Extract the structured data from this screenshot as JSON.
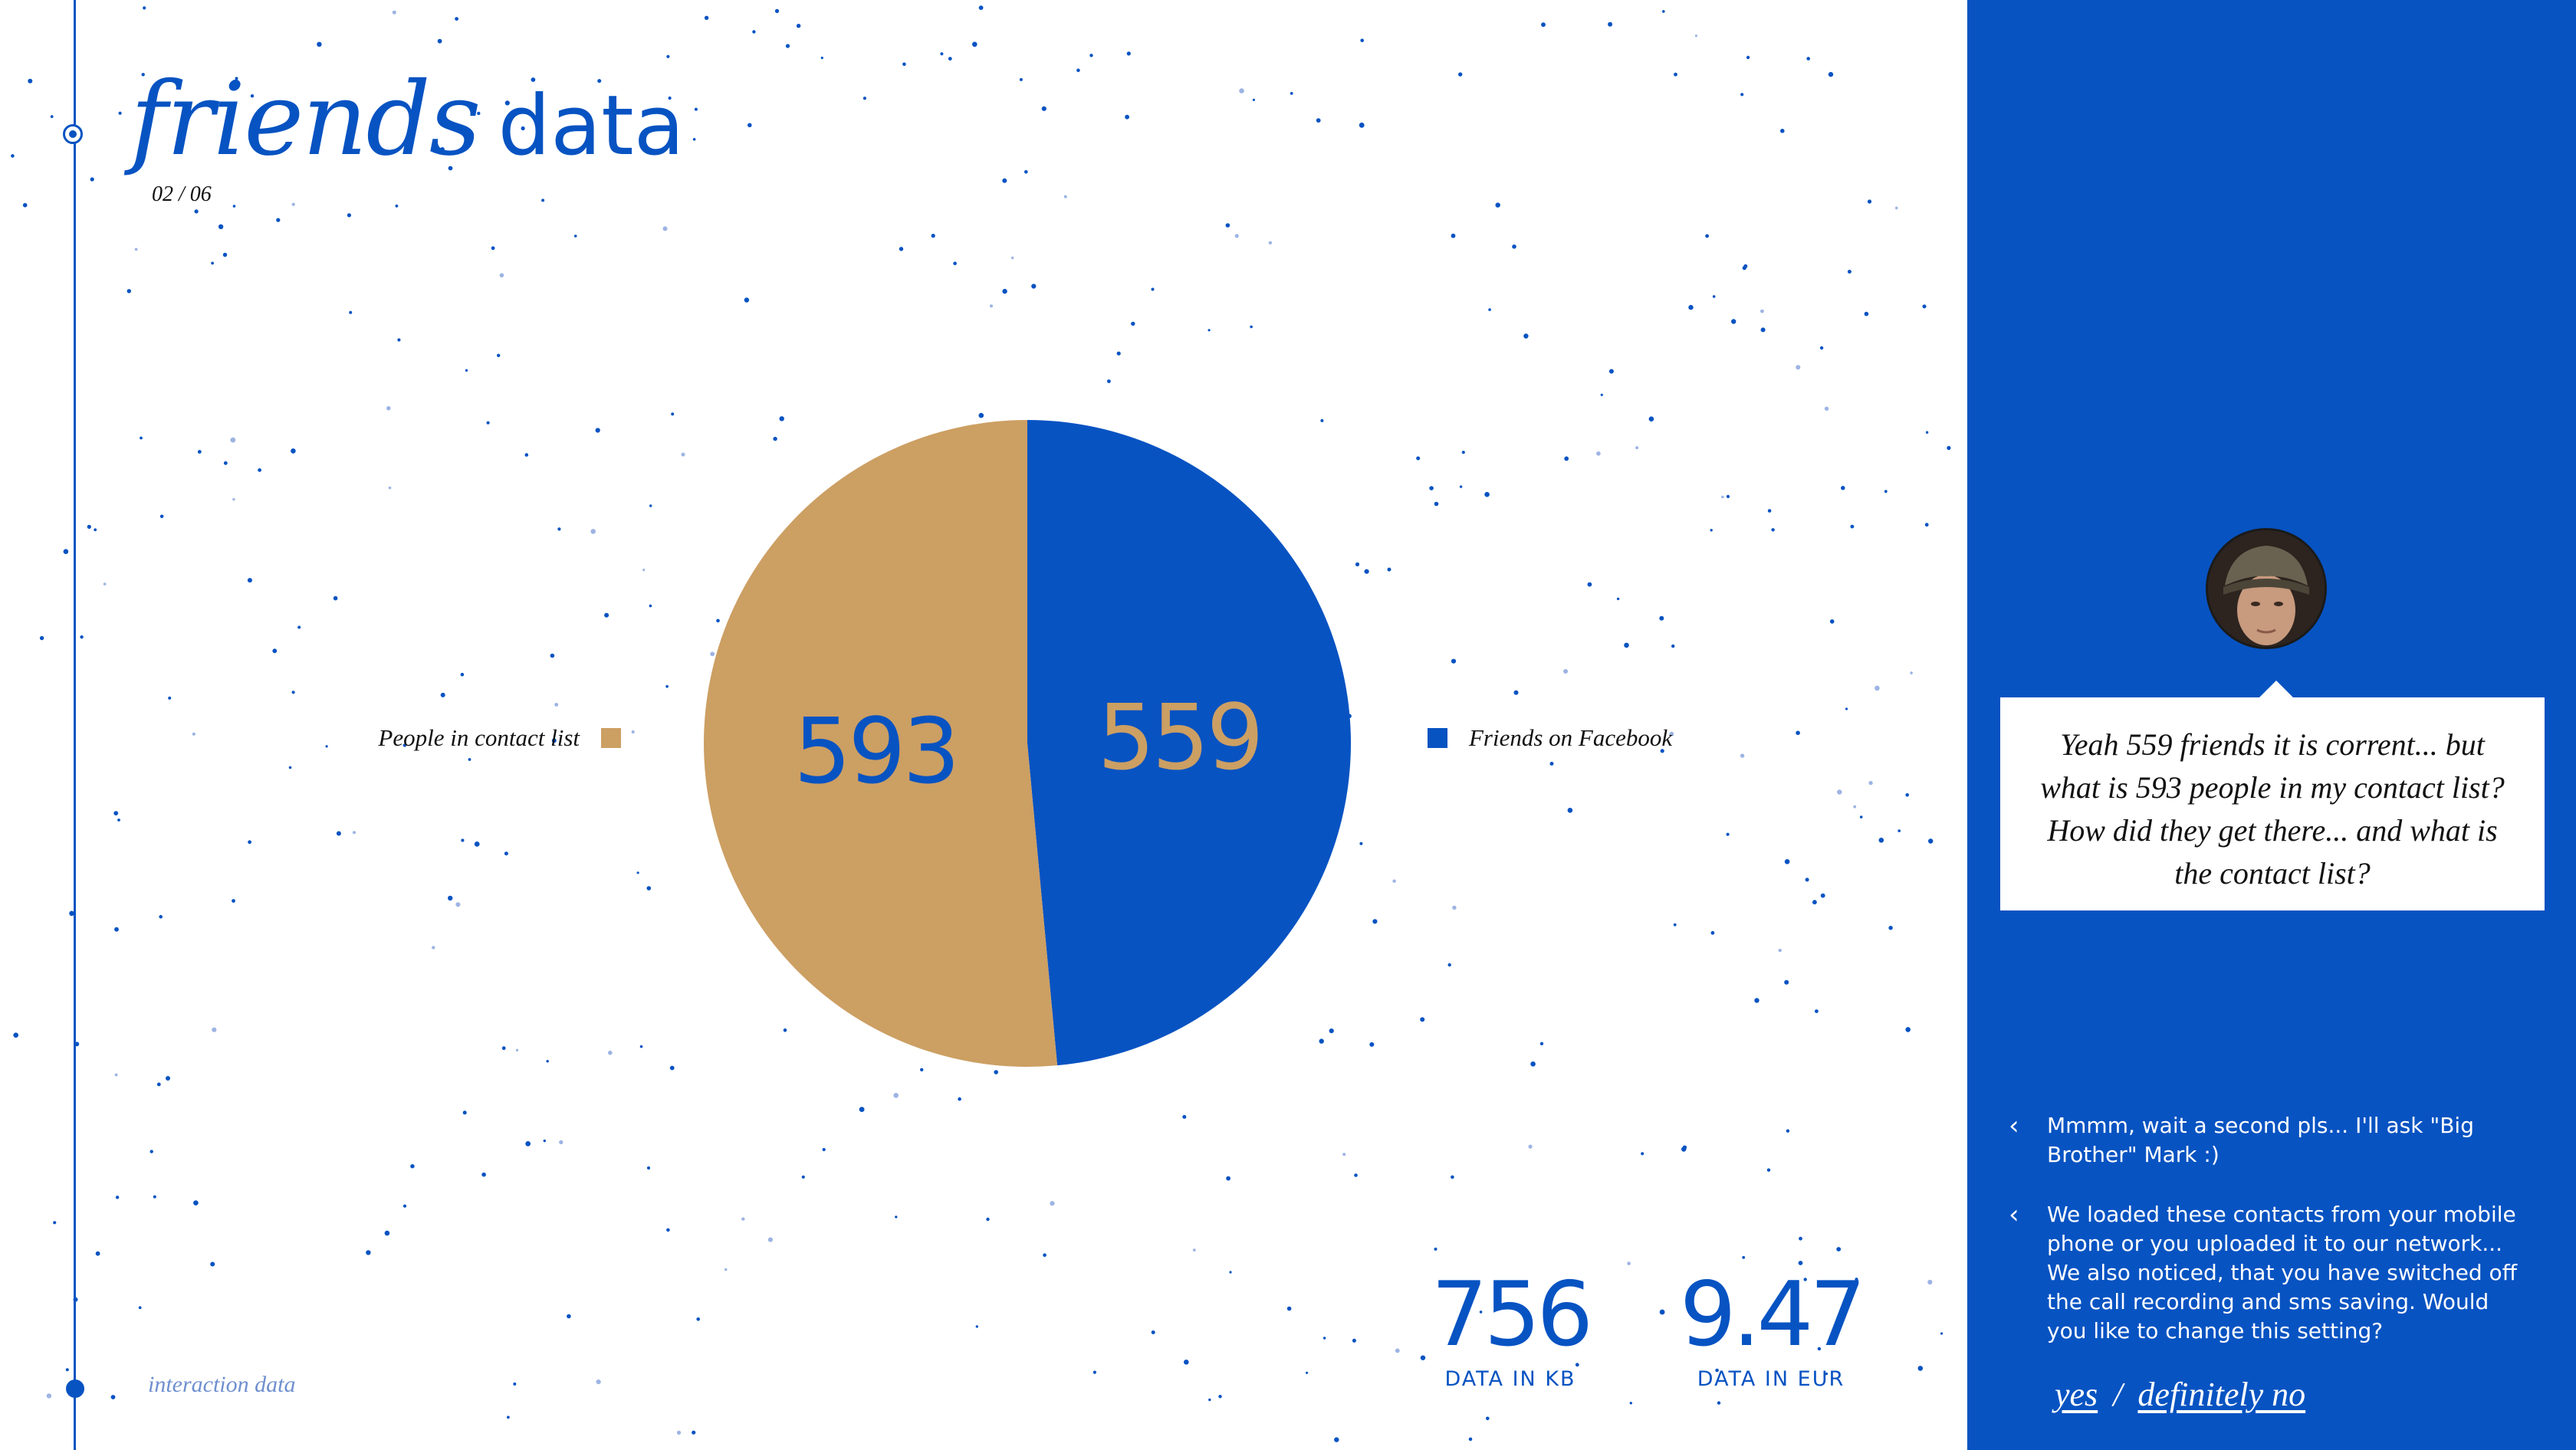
{
  "header": {
    "title_italic": "friends",
    "title_plain": "data",
    "page_index": "02 / 06"
  },
  "colors": {
    "accent": "#0753c2",
    "tan": "#cc9f63",
    "panel": "#0753c2"
  },
  "chart_data": {
    "type": "pie",
    "title": "",
    "slices": [
      {
        "label": "Friends on Facebook",
        "value": 559,
        "color": "#0753c2",
        "text_color": "#cc9f63"
      },
      {
        "label": "People in contact list",
        "value": 593,
        "color": "#cc9f63",
        "text_color": "#0753c2"
      }
    ],
    "legend_placement": "left-and-right of pie"
  },
  "stats": [
    {
      "value": "756",
      "label": "DATA IN KB"
    },
    {
      "value": "9.47",
      "label": "DATA IN EUR"
    }
  ],
  "footer": {
    "label": "interaction data"
  },
  "chat": {
    "avatar": "avatar-photo",
    "bubble_text": "Yeah 559 friends it is corrent... but what is 593 people in my contact list? How did they get there... and what is the contact list?",
    "options": [
      {
        "icon": "chevron-left-icon",
        "text": "Mmmm, wait a second pls... I'll ask \"Big Brother\" Mark :)"
      },
      {
        "icon": "chevron-left-icon",
        "text": "We loaded these contacts from your mobile phone or you uploaded it to our network... We also noticed, that you have switched off the call recording and sms saving. Would you like to change this setting?"
      }
    ],
    "answers": {
      "yes": "yes",
      "separator": "/",
      "no": "definitely no"
    }
  }
}
